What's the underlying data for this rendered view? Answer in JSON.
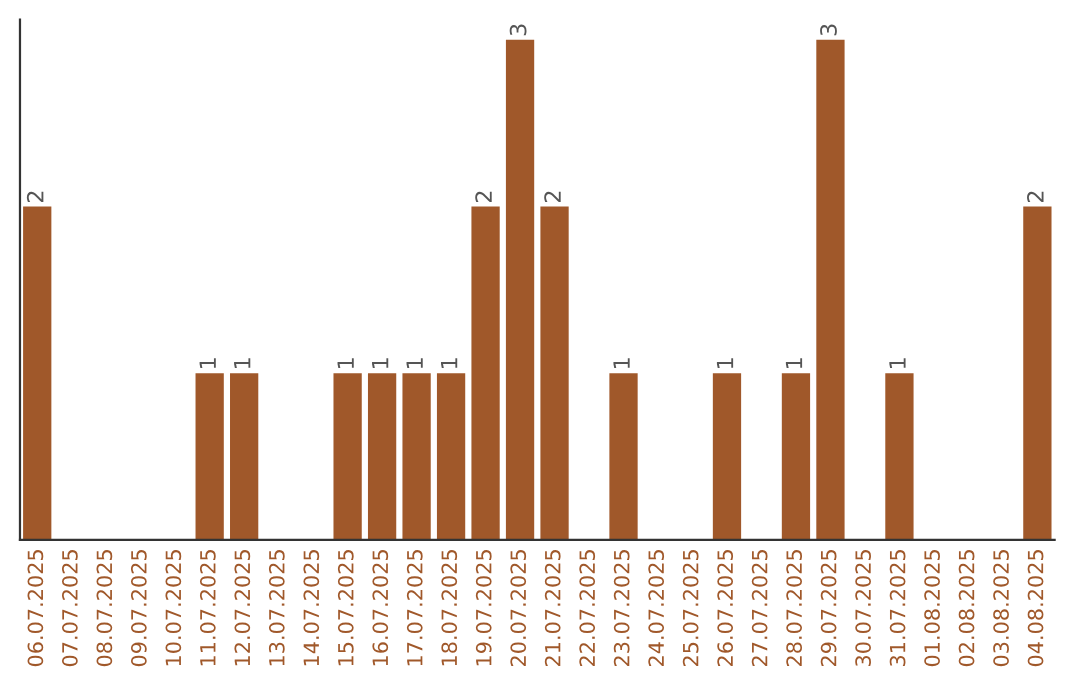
{
  "chart_data": {
    "type": "bar",
    "categories": [
      "06.07.2025",
      "07.07.2025",
      "08.07.2025",
      "09.07.2025",
      "10.07.2025",
      "11.07.2025",
      "12.07.2025",
      "13.07.2025",
      "14.07.2025",
      "15.07.2025",
      "16.07.2025",
      "17.07.2025",
      "18.07.2025",
      "19.07.2025",
      "20.07.2025",
      "21.07.2025",
      "22.07.2025",
      "23.07.2025",
      "24.07.2025",
      "25.07.2025",
      "26.07.2025",
      "27.07.2025",
      "28.07.2025",
      "29.07.2025",
      "30.07.2025",
      "31.07.2025",
      "01.08.2025",
      "02.08.2025",
      "03.08.2025",
      "04.08.2025"
    ],
    "values": [
      2,
      0,
      0,
      0,
      0,
      1,
      1,
      0,
      0,
      1,
      1,
      1,
      1,
      2,
      3,
      2,
      0,
      1,
      0,
      0,
      1,
      0,
      1,
      3,
      0,
      1,
      0,
      0,
      0,
      2
    ],
    "value_labels": [
      "2",
      null,
      null,
      null,
      null,
      "1",
      "1",
      null,
      null,
      "1",
      "1",
      "1",
      "1",
      "2",
      "3",
      "2",
      null,
      "1",
      null,
      null,
      "1",
      null,
      "1",
      "3",
      null,
      "1",
      null,
      null,
      null,
      "2"
    ],
    "color": "#a0582a",
    "grid": false,
    "legend": false
  }
}
